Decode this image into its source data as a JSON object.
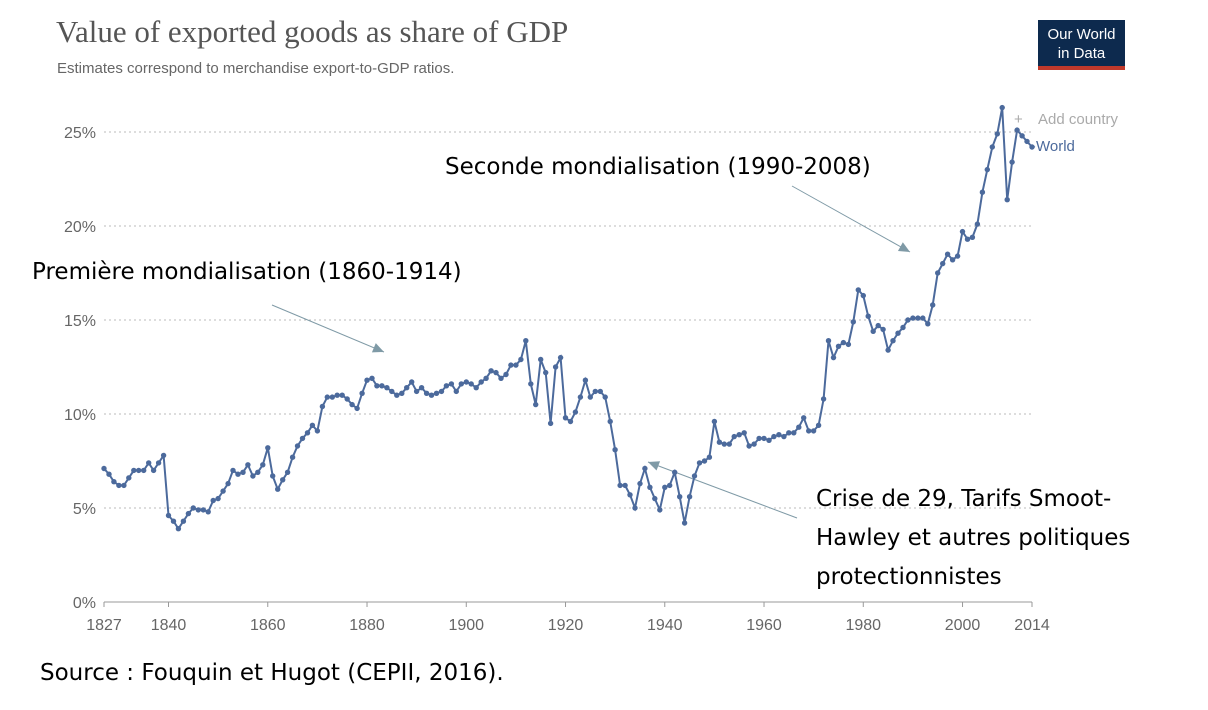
{
  "header": {
    "title": "Value of exported goods as share of GDP",
    "subtitle": "Estimates correspond to merchandise export-to-GDP ratios.",
    "logo_line1": "Our World",
    "logo_line2": "in Data"
  },
  "controls": {
    "add_country": "Add country"
  },
  "footer": {
    "source": "Source : Fouquin et Hugot (CEPII, 2016)."
  },
  "annotations": {
    "first": "Première mondialisation (1860-1914)",
    "second": "Seconde mondialisation (1990-2008)",
    "crisis_line1": "Crise de 29, Tarifs Smoot-",
    "crisis_line2": "Hawley et autres politiques",
    "crisis_line3": "protectionnistes"
  },
  "colors": {
    "series": "#4c6a9c",
    "annotation_arrow": "#7f9aa6",
    "grid": "#bbbbbb"
  },
  "chart_data": {
    "type": "line",
    "title": "Value of exported goods as share of GDP",
    "subtitle": "Estimates correspond to merchandise export-to-GDP ratios.",
    "xlabel": "",
    "ylabel": "",
    "xlim": [
      1827,
      2014
    ],
    "ylim": [
      0,
      25
    ],
    "x_ticks": [
      1827,
      1840,
      1860,
      1880,
      1900,
      1920,
      1940,
      1960,
      1980,
      2000,
      2014
    ],
    "x_tick_labels": [
      "1827",
      "1840",
      "1860",
      "1880",
      "1900",
      "1920",
      "1940",
      "1960",
      "1980",
      "2000",
      "2014"
    ],
    "y_ticks": [
      0,
      5,
      10,
      15,
      20,
      25
    ],
    "y_tick_labels": [
      "0%",
      "5%",
      "10%",
      "15%",
      "20%",
      "25%"
    ],
    "grid": "horizontal dotted",
    "legend": "right",
    "series": [
      {
        "name": "World",
        "x": [
          1827,
          1828,
          1829,
          1830,
          1831,
          1832,
          1833,
          1834,
          1835,
          1836,
          1837,
          1838,
          1839,
          1840,
          1841,
          1842,
          1843,
          1844,
          1845,
          1846,
          1847,
          1848,
          1849,
          1850,
          1851,
          1852,
          1853,
          1854,
          1855,
          1856,
          1857,
          1858,
          1859,
          1860,
          1861,
          1862,
          1863,
          1864,
          1865,
          1866,
          1867,
          1868,
          1869,
          1870,
          1871,
          1872,
          1873,
          1874,
          1875,
          1876,
          1877,
          1878,
          1879,
          1880,
          1881,
          1882,
          1883,
          1884,
          1885,
          1886,
          1887,
          1888,
          1889,
          1890,
          1891,
          1892,
          1893,
          1894,
          1895,
          1896,
          1897,
          1898,
          1899,
          1900,
          1901,
          1902,
          1903,
          1904,
          1905,
          1906,
          1907,
          1908,
          1909,
          1910,
          1911,
          1912,
          1913,
          1914,
          1915,
          1916,
          1917,
          1918,
          1919,
          1920,
          1921,
          1922,
          1923,
          1924,
          1925,
          1926,
          1927,
          1928,
          1929,
          1930,
          1931,
          1932,
          1933,
          1934,
          1935,
          1936,
          1937,
          1938,
          1939,
          1940,
          1941,
          1942,
          1943,
          1944,
          1945,
          1946,
          1947,
          1948,
          1949,
          1950,
          1951,
          1952,
          1953,
          1954,
          1955,
          1956,
          1957,
          1958,
          1959,
          1960,
          1961,
          1962,
          1963,
          1964,
          1965,
          1966,
          1967,
          1968,
          1969,
          1970,
          1971,
          1972,
          1973,
          1974,
          1975,
          1976,
          1977,
          1978,
          1979,
          1980,
          1981,
          1982,
          1983,
          1984,
          1985,
          1986,
          1987,
          1988,
          1989,
          1990,
          1991,
          1992,
          1993,
          1994,
          1995,
          1996,
          1997,
          1998,
          1999,
          2000,
          2001,
          2002,
          2003,
          2004,
          2005,
          2006,
          2007,
          2008,
          2009,
          2010,
          2011,
          2012,
          2013,
          2014
        ],
        "values": [
          7.1,
          6.8,
          6.4,
          6.2,
          6.2,
          6.6,
          7.0,
          7.0,
          7.0,
          7.4,
          7.0,
          7.4,
          7.8,
          4.6,
          4.3,
          3.9,
          4.3,
          4.7,
          5.0,
          4.9,
          4.9,
          4.8,
          5.4,
          5.5,
          5.9,
          6.3,
          7.0,
          6.8,
          6.9,
          7.3,
          6.7,
          6.9,
          7.3,
          8.2,
          6.7,
          6.0,
          6.5,
          6.9,
          7.7,
          8.3,
          8.7,
          9.0,
          9.4,
          9.1,
          10.4,
          10.9,
          10.9,
          11.0,
          11.0,
          10.8,
          10.5,
          10.3,
          11.1,
          11.8,
          11.9,
          11.5,
          11.5,
          11.4,
          11.2,
          11.0,
          11.1,
          11.4,
          11.7,
          11.2,
          11.4,
          11.1,
          11.0,
          11.1,
          11.2,
          11.5,
          11.6,
          11.2,
          11.6,
          11.7,
          11.6,
          11.4,
          11.7,
          11.9,
          12.3,
          12.2,
          11.9,
          12.1,
          12.6,
          12.6,
          12.9,
          13.9,
          11.6,
          10.5,
          12.9,
          12.2,
          9.5,
          12.5,
          13.0,
          9.8,
          9.6,
          10.1,
          10.9,
          11.8,
          10.9,
          11.2,
          11.2,
          10.9,
          9.6,
          8.1,
          6.2,
          6.2,
          5.7,
          5.0,
          6.3,
          7.1,
          6.1,
          5.5,
          4.9,
          6.1,
          6.2,
          6.9,
          5.6,
          4.2,
          5.6,
          6.7,
          7.4,
          7.5,
          7.7,
          9.6,
          8.5,
          8.4,
          8.4,
          8.8,
          8.9,
          9.0,
          8.3,
          8.4,
          8.7,
          8.7,
          8.6,
          8.8,
          8.9,
          8.8,
          9.0,
          9.0,
          9.3,
          9.8,
          9.1,
          9.1,
          9.4,
          10.8,
          13.9,
          13.0,
          13.6,
          13.8,
          13.7,
          14.9,
          16.6,
          16.3,
          15.2,
          14.4,
          14.7,
          14.5,
          13.4,
          13.9,
          14.3,
          14.6,
          15.0,
          15.1,
          15.1,
          15.1,
          14.8,
          15.8,
          17.5,
          18.0,
          18.5,
          18.2,
          18.4,
          19.7,
          19.3,
          19.4,
          20.1,
          21.8,
          23.0,
          24.2,
          24.9,
          26.3,
          21.4,
          23.4,
          25.1,
          24.8,
          24.5,
          24.2
        ]
      }
    ]
  }
}
